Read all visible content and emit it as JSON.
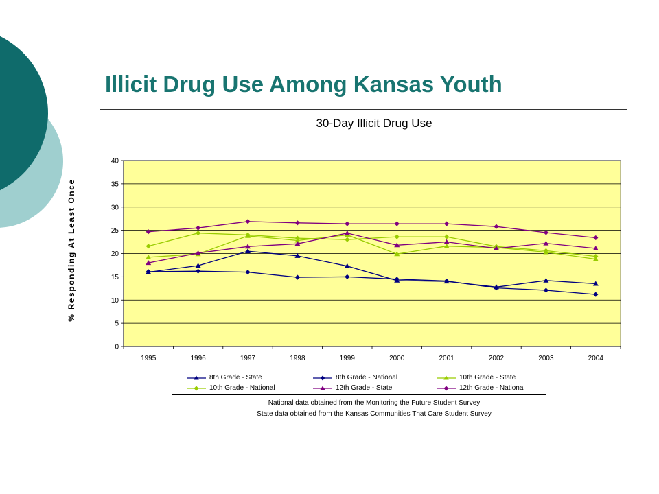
{
  "slide": {
    "title": "Illicit Drug Use Among Kansas Youth"
  },
  "notes": {
    "line1": "National data obtained from the Monitoring the Future Student Survey",
    "line2": "State data obtained from the Kansas Communities That Care Student Survey"
  },
  "theme": {
    "plot_background": "#FFFF99",
    "decor_dark": "#0F6B6B",
    "decor_light": "#9FCFCF",
    "title_color": "#187470"
  },
  "chart_data": {
    "type": "line",
    "title": "30-Day Illicit Drug Use",
    "xlabel": "",
    "ylabel": "% Responding At Least Once",
    "categories": [
      "1995",
      "1996",
      "1997",
      "1998",
      "1999",
      "2000",
      "2001",
      "2002",
      "2003",
      "2004"
    ],
    "ylim": [
      0,
      40
    ],
    "yticks": [
      0,
      5,
      10,
      15,
      20,
      25,
      30,
      35,
      40
    ],
    "grid": true,
    "legend_position": "bottom",
    "series": [
      {
        "name": "8th Grade - State",
        "color": "#000080",
        "marker": "triangle",
        "values": [
          16.0,
          17.4,
          20.5,
          19.5,
          17.3,
          14.2,
          14.0,
          12.8,
          14.2,
          13.5
        ]
      },
      {
        "name": "8th Grade - National",
        "color": "#000080",
        "marker": "diamond",
        "values": [
          16.1,
          16.2,
          16.0,
          14.9,
          15.0,
          14.5,
          14.1,
          12.6,
          12.1,
          11.2
        ]
      },
      {
        "name": "10th Grade - State",
        "color": "#99CC00",
        "marker": "triangle",
        "values": [
          19.2,
          19.9,
          23.8,
          22.8,
          24.0,
          19.9,
          21.6,
          21.3,
          20.3,
          18.8
        ]
      },
      {
        "name": "10th Grade - National",
        "color": "#99CC00",
        "marker": "diamond",
        "values": [
          21.6,
          24.4,
          24.0,
          23.3,
          23.0,
          23.6,
          23.6,
          21.5,
          20.6,
          19.4
        ]
      },
      {
        "name": "12th Grade - State",
        "color": "#800080",
        "marker": "triangle",
        "values": [
          18.0,
          20.1,
          21.5,
          22.1,
          24.4,
          21.8,
          22.5,
          21.1,
          22.2,
          21.1
        ]
      },
      {
        "name": "12th Grade - National",
        "color": "#800080",
        "marker": "diamond",
        "values": [
          24.7,
          25.5,
          26.9,
          26.6,
          26.4,
          26.4,
          26.4,
          25.8,
          24.5,
          23.4
        ]
      }
    ]
  }
}
